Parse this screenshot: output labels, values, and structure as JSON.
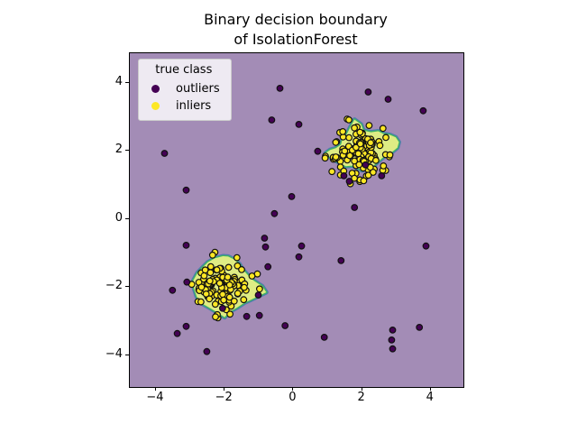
{
  "title": {
    "line1": "Binary decision boundary",
    "line2": "of IsolationForest"
  },
  "legend": {
    "title": "true class",
    "entries": [
      {
        "label": "outliers",
        "color": "#440154"
      },
      {
        "label": "inliers",
        "color": "#fde725"
      }
    ]
  },
  "colors": {
    "outlier_region_background": "#a38cb6",
    "inlier_region_fill": "#dfec84",
    "region_border_outer": "#4d7cae",
    "region_border_inner": "#3fb364",
    "outlier_point": "#440154",
    "inlier_point": "#fde725",
    "point_edge": "#111111"
  },
  "chart_data": {
    "type": "scatter",
    "title": "Binary decision boundary of IsolationForest",
    "legend_title": "true class",
    "classes": [
      "outliers",
      "inliers"
    ],
    "xlabel": "",
    "ylabel": "",
    "grid": false,
    "legend_position": "upper left",
    "xlim": [
      -4.76,
      4.95
    ],
    "ylim": [
      -4.93,
      4.87
    ],
    "x_tick_values": [
      -4,
      -2,
      0,
      2,
      4
    ],
    "x_tick_labels": [
      "−4",
      "−2",
      "0",
      "2",
      "4"
    ],
    "y_tick_values": [
      -4,
      -2,
      0,
      2,
      4
    ],
    "y_tick_labels": [
      "−4",
      "−2",
      "0",
      "2",
      "4"
    ],
    "outlier_points": [
      [
        -0.39,
        3.84
      ],
      [
        -0.63,
        2.91
      ],
      [
        0.16,
        2.78
      ],
      [
        2.18,
        3.73
      ],
      [
        2.76,
        3.52
      ],
      [
        3.78,
        3.18
      ],
      [
        -3.75,
        1.93
      ],
      [
        -3.12,
        0.85
      ],
      [
        0.71,
        1.99
      ],
      [
        2.1,
        1.59
      ],
      [
        1.47,
        1.27
      ],
      [
        1.63,
        1.11
      ],
      [
        2.57,
        1.27
      ],
      [
        1.78,
        0.34
      ],
      [
        -0.55,
        0.16
      ],
      [
        -0.05,
        0.66
      ],
      [
        -3.12,
        -0.77
      ],
      [
        -0.84,
        -0.56
      ],
      [
        -0.81,
        -0.82
      ],
      [
        -0.74,
        -1.4
      ],
      [
        -3.1,
        -1.85
      ],
      [
        -3.52,
        -2.09
      ],
      [
        -1.02,
        -2.23
      ],
      [
        -2.06,
        -2.62
      ],
      [
        -1.36,
        -2.86
      ],
      [
        -0.99,
        -2.83
      ],
      [
        -3.12,
        -3.15
      ],
      [
        -3.38,
        -3.36
      ],
      [
        -2.52,
        -3.89
      ],
      [
        -0.24,
        -3.13
      ],
      [
        0.24,
        -0.79
      ],
      [
        0.16,
        -1.11
      ],
      [
        1.39,
        -1.22
      ],
      [
        3.86,
        -0.79
      ],
      [
        2.89,
        -3.26
      ],
      [
        3.67,
        -3.18
      ],
      [
        0.9,
        -3.47
      ],
      [
        2.86,
        -3.55
      ],
      [
        2.89,
        -3.81
      ]
    ],
    "inlier_clusters": [
      {
        "note": "dense overlapping gaussian cluster, positions approximated",
        "center": [
          1.95,
          1.97
        ],
        "std": 0.4,
        "count": 120,
        "seed": 20
      },
      {
        "note": "dense overlapping gaussian cluster, positions approximated",
        "center": [
          -2.02,
          -1.98
        ],
        "std": 0.4,
        "count": 120,
        "seed": 77
      }
    ],
    "inlier_region_polygons": [
      [
        [
          1.78,
          2.92
        ],
        [
          1.97,
          2.78
        ],
        [
          2.04,
          2.6
        ],
        [
          2.26,
          2.55
        ],
        [
          2.47,
          2.58
        ],
        [
          2.62,
          2.5
        ],
        [
          2.82,
          2.47
        ],
        [
          2.98,
          2.4
        ],
        [
          3.07,
          2.26
        ],
        [
          3.03,
          2.1
        ],
        [
          2.91,
          2.0
        ],
        [
          2.78,
          1.9
        ],
        [
          2.63,
          1.83
        ],
        [
          2.48,
          1.7
        ],
        [
          2.33,
          1.57
        ],
        [
          2.16,
          1.48
        ],
        [
          2.0,
          1.43
        ],
        [
          1.88,
          1.5
        ],
        [
          1.7,
          1.57
        ],
        [
          1.53,
          1.55
        ],
        [
          1.38,
          1.63
        ],
        [
          1.22,
          1.72
        ],
        [
          1.06,
          1.82
        ],
        [
          0.93,
          1.93
        ],
        [
          1.07,
          2.03
        ],
        [
          1.24,
          2.08
        ],
        [
          1.39,
          2.19
        ],
        [
          1.43,
          2.35
        ],
        [
          1.56,
          2.5
        ],
        [
          1.66,
          2.7
        ]
      ],
      [
        [
          -2.05,
          -1.09
        ],
        [
          -2.28,
          -1.15
        ],
        [
          -2.49,
          -1.27
        ],
        [
          -2.63,
          -1.41
        ],
        [
          -2.79,
          -1.58
        ],
        [
          -2.91,
          -1.8
        ],
        [
          -2.89,
          -2.04
        ],
        [
          -2.81,
          -2.28
        ],
        [
          -2.67,
          -2.47
        ],
        [
          -2.38,
          -2.64
        ],
        [
          -2.17,
          -2.77
        ],
        [
          -2.0,
          -2.88
        ],
        [
          -1.87,
          -2.73
        ],
        [
          -1.64,
          -2.6
        ],
        [
          -1.42,
          -2.45
        ],
        [
          -1.26,
          -2.38
        ],
        [
          -0.97,
          -2.24
        ],
        [
          -0.79,
          -2.15
        ],
        [
          -0.91,
          -1.97
        ],
        [
          -1.17,
          -1.8
        ],
        [
          -1.34,
          -1.63
        ],
        [
          -1.49,
          -1.46
        ],
        [
          -1.57,
          -1.32
        ],
        [
          -1.74,
          -1.18
        ],
        [
          -1.9,
          -1.1
        ]
      ]
    ]
  }
}
